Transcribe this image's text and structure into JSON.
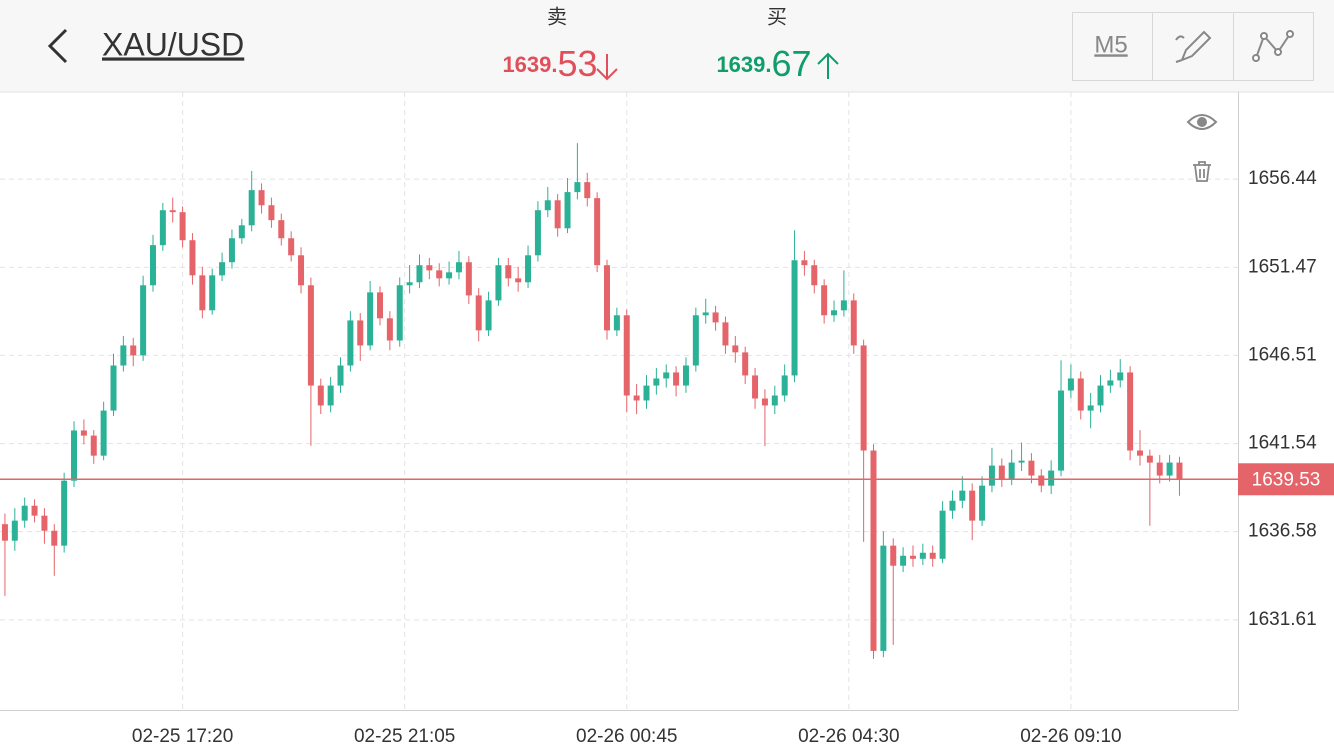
{
  "header": {
    "title": "XAU/USD",
    "sell": {
      "label": "卖",
      "price": 1639.53
    },
    "buy": {
      "label": "买",
      "price": 1639.67
    },
    "timeframe": "M5"
  },
  "chart_data": {
    "type": "candlestick",
    "open": [
      1637.0,
      1636.07,
      1637.2,
      1638.04,
      1637.48,
      1636.63,
      1635.79,
      1639.45,
      1642.28,
      1641.99,
      1640.86,
      1643.4,
      1645.94,
      1647.07,
      1646.51,
      1650.46,
      1652.72,
      1654.69,
      1654.58,
      1653.0,
      1651.02,
      1649.05,
      1651.02,
      1651.76,
      1653.11,
      1653.84,
      1655.82,
      1654.97,
      1654.13,
      1653.11,
      1652.15,
      1650.46,
      1644.81,
      1643.69,
      1644.81,
      1645.94,
      1648.48,
      1647.07,
      1650.06,
      1648.6,
      1647.35,
      1650.46,
      1650.63,
      1651.59,
      1651.3,
      1650.85,
      1651.19,
      1651.76,
      1649.89,
      1647.92,
      1649.61,
      1651.59,
      1650.85,
      1650.63,
      1652.15,
      1654.69,
      1655.25,
      1653.67,
      1655.71,
      1656.27,
      1655.37,
      1651.59,
      1647.92,
      1648.77,
      1644.25,
      1643.97,
      1644.81,
      1645.21,
      1645.55,
      1644.81,
      1645.94,
      1648.77,
      1648.93,
      1648.37,
      1647.07,
      1646.68,
      1645.38,
      1644.08,
      1643.69,
      1644.25,
      1645.38,
      1651.87,
      1651.59,
      1650.46,
      1648.77,
      1649.05,
      1649.61,
      1647.07,
      1641.15,
      1629.86,
      1635.79,
      1634.66,
      1635.22,
      1635.05,
      1635.39,
      1635.05,
      1637.76,
      1638.32,
      1638.89,
      1637.2,
      1639.17,
      1640.3,
      1639.57,
      1640.47,
      1640.58,
      1639.74,
      1639.17,
      1640.02,
      1644.53,
      1645.21,
      1643.4,
      1643.69,
      1644.81,
      1645.1,
      1645.55,
      1641.15,
      1640.86,
      1640.47,
      1639.74,
      1640.47
    ],
    "high": [
      1637.6,
      1637.9,
      1638.5,
      1638.4,
      1637.9,
      1637.0,
      1639.9,
      1642.8,
      1642.9,
      1642.3,
      1643.9,
      1646.6,
      1647.6,
      1647.5,
      1651.0,
      1653.3,
      1655.1,
      1655.4,
      1654.9,
      1653.4,
      1651.5,
      1651.4,
      1652.3,
      1653.6,
      1654.2,
      1656.9,
      1656.2,
      1655.4,
      1654.5,
      1653.5,
      1652.6,
      1650.9,
      1645.2,
      1645.3,
      1646.4,
      1649.0,
      1648.9,
      1650.7,
      1650.4,
      1649.0,
      1650.9,
      1651.6,
      1652.2,
      1652.0,
      1651.7,
      1651.8,
      1652.4,
      1652.1,
      1650.3,
      1650.1,
      1652.0,
      1652.0,
      1651.5,
      1652.7,
      1655.2,
      1656.0,
      1655.6,
      1656.5,
      1658.47,
      1656.8,
      1655.7,
      1651.9,
      1649.2,
      1649.1,
      1644.9,
      1645.4,
      1645.8,
      1646.0,
      1645.9,
      1646.4,
      1649.2,
      1649.7,
      1649.3,
      1648.7,
      1647.6,
      1647.0,
      1645.8,
      1644.6,
      1644.8,
      1646.0,
      1653.56,
      1652.4,
      1651.9,
      1650.8,
      1649.6,
      1651.3,
      1650.0,
      1647.4,
      1641.5,
      1636.6,
      1636.2,
      1635.7,
      1635.8,
      1635.9,
      1635.8,
      1638.3,
      1638.9,
      1639.7,
      1639.3,
      1639.7,
      1641.3,
      1640.7,
      1641.2,
      1641.6,
      1641.0,
      1640.1,
      1640.6,
      1646.23,
      1646.0,
      1645.6,
      1644.4,
      1645.4,
      1645.7,
      1646.3,
      1645.9,
      1642.3,
      1641.2,
      1640.9,
      1640.9,
      1640.8
    ],
    "low": [
      1632.96,
      1635.5,
      1636.8,
      1637.1,
      1635.9,
      1634.09,
      1635.4,
      1639.1,
      1641.5,
      1640.4,
      1640.6,
      1643.1,
      1645.6,
      1645.9,
      1646.2,
      1650.1,
      1652.4,
      1654.0,
      1652.6,
      1650.5,
      1648.6,
      1648.8,
      1650.7,
      1651.4,
      1652.8,
      1653.5,
      1654.5,
      1653.7,
      1652.7,
      1651.8,
      1650.0,
      1641.42,
      1643.2,
      1643.3,
      1644.4,
      1645.6,
      1646.2,
      1646.8,
      1648.2,
      1646.8,
      1647.0,
      1650.0,
      1650.3,
      1650.8,
      1650.4,
      1650.5,
      1650.8,
      1649.4,
      1647.3,
      1647.6,
      1649.3,
      1650.4,
      1650.1,
      1650.3,
      1651.8,
      1654.3,
      1653.2,
      1653.4,
      1655.3,
      1654.9,
      1651.2,
      1647.4,
      1647.6,
      1643.3,
      1643.2,
      1643.5,
      1644.3,
      1644.7,
      1644.2,
      1644.4,
      1645.6,
      1648.3,
      1647.9,
      1646.6,
      1646.1,
      1644.9,
      1643.5,
      1641.4,
      1643.2,
      1643.9,
      1645.0,
      1651.0,
      1650.0,
      1648.3,
      1648.4,
      1648.7,
      1646.6,
      1636.0,
      1629.4,
      1629.5,
      1630.2,
      1634.3,
      1634.6,
      1634.7,
      1634.6,
      1634.8,
      1637.3,
      1637.9,
      1636.1,
      1636.9,
      1638.8,
      1639.1,
      1639.2,
      1640.0,
      1639.3,
      1638.8,
      1638.7,
      1639.7,
      1644.1,
      1642.9,
      1642.4,
      1643.3,
      1644.4,
      1644.7,
      1640.6,
      1640.3,
      1636.91,
      1639.3,
      1639.4,
      1638.6
    ],
    "close": [
      1636.07,
      1637.2,
      1638.04,
      1637.48,
      1636.63,
      1635.79,
      1639.45,
      1642.28,
      1641.99,
      1640.86,
      1643.4,
      1645.94,
      1647.07,
      1646.51,
      1650.46,
      1652.72,
      1654.69,
      1654.58,
      1653.0,
      1651.02,
      1649.05,
      1651.02,
      1651.76,
      1653.11,
      1653.84,
      1655.82,
      1654.97,
      1654.13,
      1653.11,
      1652.15,
      1650.46,
      1644.81,
      1643.69,
      1644.81,
      1645.94,
      1648.48,
      1647.07,
      1650.06,
      1648.6,
      1647.35,
      1650.46,
      1650.63,
      1651.59,
      1651.3,
      1650.85,
      1651.19,
      1651.76,
      1649.89,
      1647.92,
      1649.61,
      1651.59,
      1650.85,
      1650.63,
      1652.15,
      1654.69,
      1655.25,
      1653.67,
      1655.71,
      1656.27,
      1655.37,
      1651.59,
      1647.92,
      1648.77,
      1644.25,
      1643.97,
      1644.81,
      1645.21,
      1645.55,
      1644.81,
      1645.94,
      1648.77,
      1648.93,
      1648.37,
      1647.07,
      1646.68,
      1645.38,
      1644.08,
      1643.69,
      1644.25,
      1645.38,
      1651.87,
      1651.59,
      1650.46,
      1648.77,
      1649.05,
      1649.61,
      1647.07,
      1641.15,
      1629.86,
      1635.79,
      1634.66,
      1635.22,
      1635.05,
      1635.39,
      1635.05,
      1637.76,
      1638.32,
      1638.89,
      1637.2,
      1639.17,
      1640.3,
      1639.57,
      1640.47,
      1640.58,
      1639.74,
      1639.17,
      1640.02,
      1644.53,
      1645.21,
      1643.4,
      1643.69,
      1644.81,
      1645.1,
      1645.55,
      1641.15,
      1640.86,
      1640.47,
      1639.74,
      1640.47,
      1639.53
    ],
    "up_color": "#2bb196",
    "down_color": "#e5646a",
    "ylim": [
      1626.53,
      1661.35
    ],
    "yticks": [
      1631.61,
      1636.58,
      1641.54,
      1646.51,
      1651.47,
      1656.44
    ],
    "xlim": [
      -0.5,
      124.93
    ],
    "xticks": [
      {
        "value": 18,
        "label": "02-25 17:20"
      },
      {
        "value": 40.5,
        "label": "02-25 21:05"
      },
      {
        "value": 63,
        "label": "02-26 00:45"
      },
      {
        "value": 85.5,
        "label": "02-26 04:30"
      },
      {
        "value": 108,
        "label": "02-26 09:10"
      }
    ],
    "grid": true,
    "last_price": 1639.53,
    "last_price_color": "#e5646a"
  }
}
